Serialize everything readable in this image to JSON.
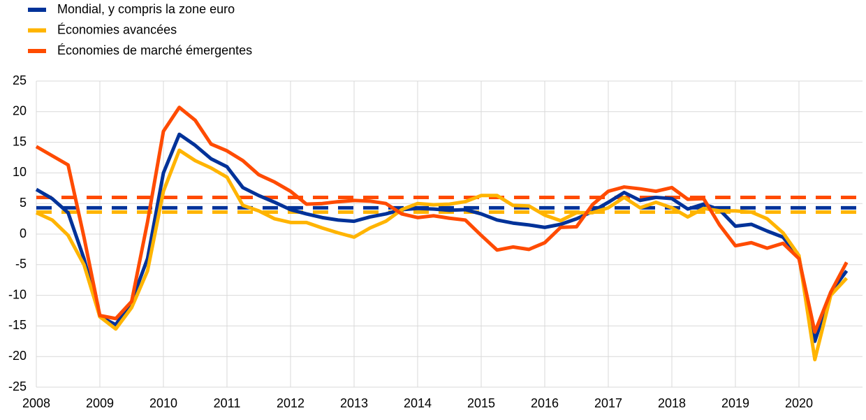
{
  "chart_data": {
    "type": "line",
    "x": [
      2008,
      2008.25,
      2008.5,
      2008.75,
      2009,
      2009.25,
      2009.5,
      2009.75,
      2010,
      2010.25,
      2010.5,
      2010.75,
      2011,
      2011.25,
      2011.5,
      2011.75,
      2012,
      2012.25,
      2012.5,
      2012.75,
      2013,
      2013.25,
      2013.5,
      2013.75,
      2014,
      2014.25,
      2014.5,
      2014.75,
      2015,
      2015.25,
      2015.5,
      2015.75,
      2016,
      2016.25,
      2016.5,
      2016.75,
      2017,
      2017.25,
      2017.5,
      2017.75,
      2018,
      2018.25,
      2018.5,
      2018.75,
      2019,
      2019.25,
      2019.5,
      2019.75,
      2020,
      2020.25,
      2020.5,
      2020.75
    ],
    "series": [
      {
        "name": "Mondial, y compris la zone euro",
        "color": "#003299",
        "values": [
          7.3,
          5.8,
          3.5,
          -4,
          -13.5,
          -14.8,
          -11,
          -4,
          10,
          16.3,
          14.5,
          12.3,
          11,
          7.6,
          6.3,
          5.2,
          4,
          3.3,
          2.7,
          2.3,
          2.1,
          2.8,
          3.3,
          4,
          4.2,
          4.1,
          3.9,
          4,
          3.3,
          2.3,
          1.8,
          1.5,
          1.1,
          1.6,
          2.5,
          3.7,
          5.2,
          6.8,
          5.5,
          6,
          5.8,
          4.1,
          4.9,
          4,
          1.3,
          1.6,
          0.5,
          -0.5,
          -3.8,
          -17.5,
          -9.5,
          -6
        ]
      },
      {
        "name": "Économies avancées",
        "color": "#ffb400",
        "values": [
          3.5,
          2.3,
          -0.2,
          -5,
          -13.5,
          -15.5,
          -12,
          -6,
          7,
          13.7,
          12,
          10.8,
          9.3,
          4.7,
          3.8,
          2.5,
          1.9,
          1.9,
          1,
          0.2,
          -0.5,
          1,
          2.1,
          4,
          5,
          4.8,
          4.9,
          5.3,
          6.3,
          6.3,
          4.7,
          4.6,
          3.1,
          2.2,
          3.5,
          3.5,
          4.3,
          6,
          4.3,
          5.2,
          4.3,
          2.8,
          4.2,
          3.8,
          3.8,
          3.6,
          2.5,
          0.2,
          -3.5,
          -20.5,
          -10,
          -7.2
        ]
      },
      {
        "name": "Économies de marché émergentes",
        "color": "#ff4b00",
        "values": [
          14.3,
          12.8,
          11.3,
          -0.5,
          -13.3,
          -13.8,
          -11,
          2,
          16.8,
          20.7,
          18.6,
          14.7,
          13.6,
          12,
          9.7,
          8.5,
          7,
          4.9,
          5,
          5.3,
          5.5,
          5.4,
          5,
          3.3,
          2.7,
          3,
          2.6,
          2.3,
          -0.2,
          -2.6,
          -2.1,
          -2.5,
          -1.4,
          1.1,
          1.2,
          4.8,
          7,
          7.7,
          7.4,
          7,
          7.6,
          5.7,
          5.8,
          1.5,
          -1.9,
          -1.4,
          -2.3,
          -1.5,
          -4,
          -16,
          -9.5,
          -4.6
        ]
      }
    ],
    "reference_lines": [
      {
        "value": 4.3,
        "color": "#003299"
      },
      {
        "value": 3.6,
        "color": "#ffb400"
      },
      {
        "value": 6,
        "color": "#ff4b00"
      }
    ],
    "xlim": [
      2008,
      2021
    ],
    "xticks": [
      2008,
      2009,
      2010,
      2011,
      2012,
      2013,
      2014,
      2015,
      2016,
      2017,
      2018,
      2019,
      2020
    ],
    "ylim": [
      -25,
      25
    ],
    "yticks": [
      -25,
      -20,
      -15,
      -10,
      -5,
      0,
      5,
      10,
      15,
      20,
      25
    ],
    "grid": true,
    "legend": "top-left"
  }
}
